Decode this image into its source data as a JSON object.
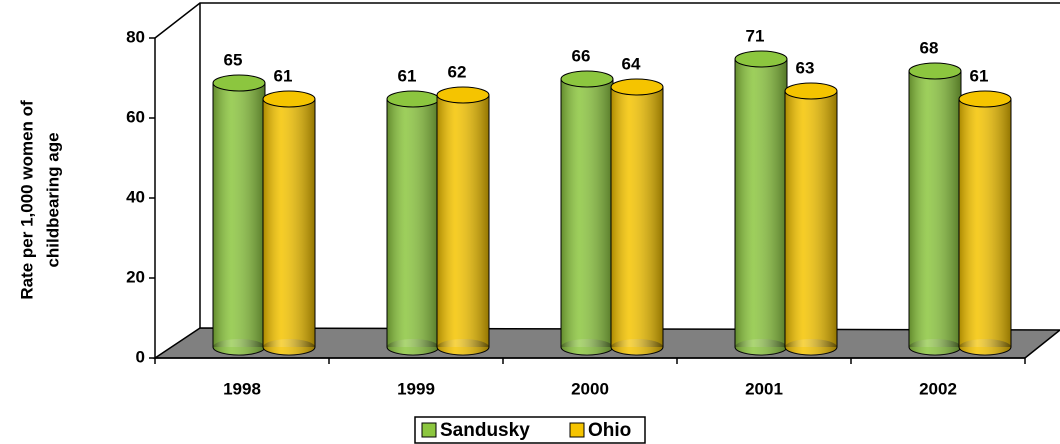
{
  "chart_data": {
    "type": "bar3d",
    "y_label": [
      "Rate per 1,000 women of",
      "childbearing age"
    ],
    "categories": [
      "1998",
      "1999",
      "2000",
      "2001",
      "2002"
    ],
    "series": [
      {
        "name": "Sandusky",
        "color": "#8cc63f",
        "values": [
          65,
          61,
          66,
          71,
          68
        ]
      },
      {
        "name": "Ohio",
        "color": "#f5c400",
        "values": [
          61,
          62,
          64,
          63,
          61
        ]
      }
    ],
    "ylim": [
      0,
      80
    ],
    "yticks": [
      0,
      20,
      40,
      60,
      80
    ],
    "grid": false,
    "legend": "bottom"
  }
}
